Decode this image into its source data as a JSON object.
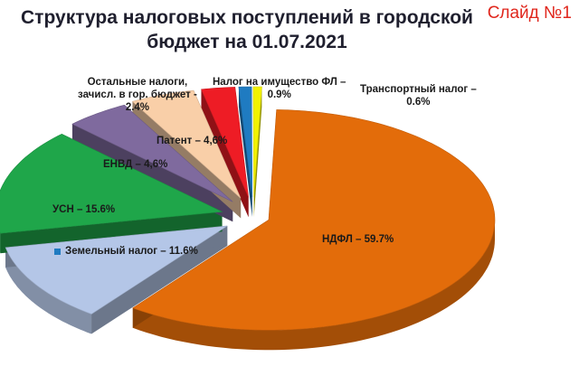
{
  "header": {
    "title_line1": "Структура налоговых поступлений в городской",
    "title_line2": "бюджет на 01.07.2021",
    "slide_number": "Слайд №1"
  },
  "chart_data": {
    "type": "pie",
    "title": "Структура налоговых поступлений в городской бюджет на 01.07.2021",
    "three_d": true,
    "exploded": true,
    "slices": [
      {
        "label": "НДФЛ – 59.7%",
        "name": "НДФЛ",
        "value": 59.7,
        "color": "#e36c0a"
      },
      {
        "label": "Земельный налог – 11.6%",
        "name": "Земельный налог",
        "value": 11.6,
        "color": "#b4c6e7"
      },
      {
        "label": "УСН – 15.6%",
        "name": "УСН",
        "value": 15.6,
        "color": "#1fa64a"
      },
      {
        "label": "ЕНВД – 4,6%",
        "name": "ЕНВД",
        "value": 4.6,
        "color": "#7f6a9e"
      },
      {
        "label": "Патент – 4,6%",
        "name": "Патент",
        "value": 4.6,
        "color": "#f9cfa8"
      },
      {
        "label_line1": "Остальные налоги,",
        "label_line2": "зачисл. в гор. бюджет -",
        "label_line3": "2.4%",
        "name": "Остальные налоги, зачисл. в гор. бюджет",
        "value": 2.4,
        "color": "#ee1c25"
      },
      {
        "label_line1": "Налог на имущество ФЛ –",
        "label_line2": "0.9%",
        "name": "Налог на имущество ФЛ",
        "value": 0.9,
        "color": "#1f7bc1"
      },
      {
        "label_line1": "Транспортный налог –",
        "label_line2": "0.6%",
        "name": "Транспортный налог",
        "value": 0.6,
        "color": "#f2f200"
      }
    ]
  }
}
